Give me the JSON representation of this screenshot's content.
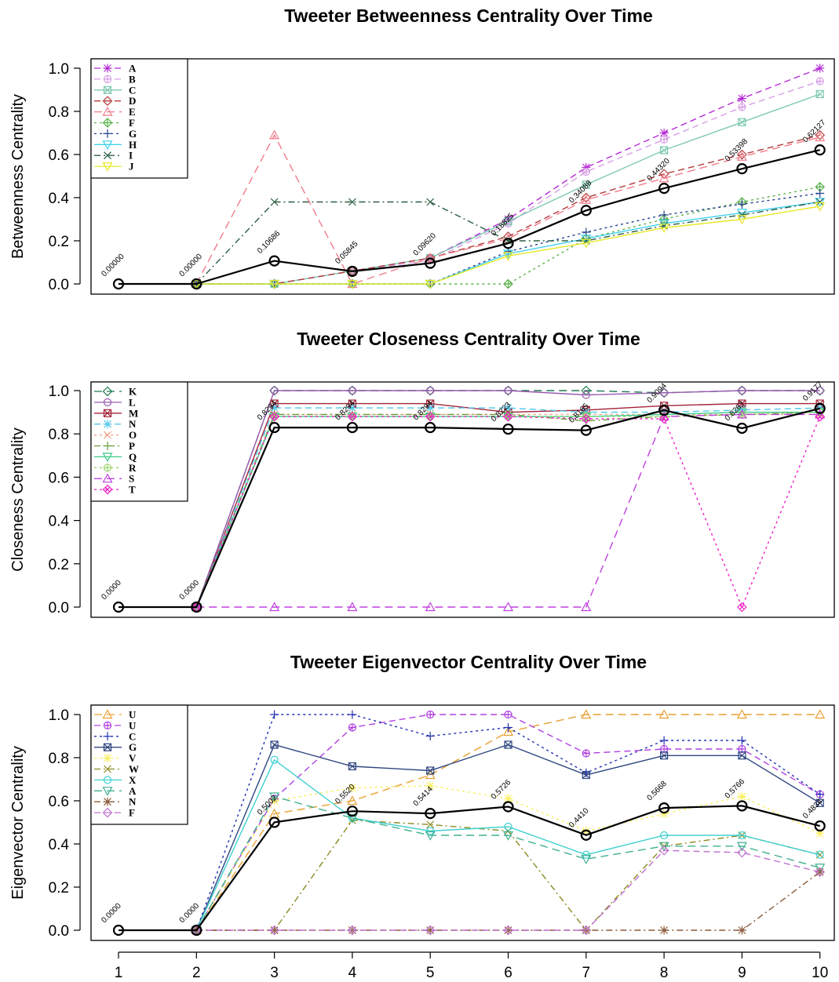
{
  "chart_data": [
    {
      "type": "line",
      "title": "Tweeter Betweenness Centrality Over Time",
      "ylabel": "Betweenness Centrality",
      "xlabel": "",
      "ylim": [
        0,
        1
      ],
      "yticks": [
        "0.0",
        "0.2",
        "0.4",
        "0.6",
        "0.8",
        "1.0"
      ],
      "x": [
        1,
        2,
        3,
        4,
        5,
        6,
        7,
        8,
        9,
        10
      ],
      "legend_position": "top-left",
      "series": [
        {
          "name": "A",
          "color": "#b52ad6",
          "dash": "8,5",
          "marker": "asterisk",
          "values": [
            null,
            0,
            0,
            0.06,
            0.12,
            0.3,
            0.54,
            0.7,
            0.86,
            1.0
          ]
        },
        {
          "name": "B",
          "color": "#d79ee6",
          "dash": "8,5",
          "marker": "circleplus",
          "values": [
            null,
            0,
            0,
            0.06,
            0.11,
            0.28,
            0.52,
            0.67,
            0.82,
            0.94
          ]
        },
        {
          "name": "C",
          "color": "#7fc9b0",
          "dash": "",
          "marker": "squarex",
          "values": [
            null,
            0,
            0,
            0.06,
            0.12,
            0.29,
            0.46,
            0.62,
            0.75,
            0.88
          ]
        },
        {
          "name": "D",
          "color": "#b23a3a",
          "dash": "8,5",
          "marker": "diamond",
          "values": [
            null,
            0,
            0,
            0.06,
            0.12,
            0.22,
            0.4,
            0.51,
            0.6,
            0.69
          ]
        },
        {
          "name": "E",
          "color": "#f07c8a",
          "dash": "10,6",
          "marker": "triangle",
          "values": [
            null,
            0,
            0.69,
            0.0,
            0.12,
            0.21,
            0.39,
            0.49,
            0.59,
            0.68
          ]
        },
        {
          "name": "F",
          "color": "#5ab34a",
          "dash": "3,4",
          "marker": "diamondplus",
          "values": [
            null,
            0,
            0,
            0,
            0,
            0,
            0.21,
            0.3,
            0.38,
            0.45
          ]
        },
        {
          "name": "G",
          "color": "#25428e",
          "dash": "3,4",
          "marker": "plus",
          "values": [
            null,
            0,
            0,
            0,
            0,
            0.15,
            0.24,
            0.32,
            0.37,
            0.42
          ]
        },
        {
          "name": "H",
          "color": "#3fd0f0",
          "dash": "",
          "marker": "triangledown",
          "values": [
            null,
            0,
            0,
            0,
            0,
            0.14,
            0.21,
            0.28,
            0.33,
            0.38
          ]
        },
        {
          "name": "I",
          "color": "#2a5e42",
          "dash": "8,4,2,4",
          "marker": "x",
          "values": [
            null,
            0,
            0.38,
            0.38,
            0.38,
            0.2,
            0.2,
            0.27,
            0.32,
            0.38
          ]
        },
        {
          "name": "J",
          "color": "#e8e828",
          "dash": "",
          "marker": "triangledown",
          "values": [
            null,
            0,
            0,
            0,
            0,
            0.13,
            0.19,
            0.26,
            0.3,
            0.36
          ]
        }
      ],
      "average": {
        "color": "#000000",
        "values": [
          0,
          0,
          0.10686,
          0.05845,
          0.0962,
          0.18825,
          0.34088,
          0.4432,
          0.53398,
          0.62127
        ]
      },
      "annotations": [
        "0.00000",
        "0.00000",
        "0.10686",
        "0.05845",
        "0.09620",
        "0.18825",
        "0.34088",
        "0.44320",
        "0.53398",
        "0.62127"
      ]
    },
    {
      "type": "line",
      "title": "Tweeter Closeness Centrality Over Time",
      "ylabel": "Closeness Centrality",
      "xlabel": "",
      "ylim": [
        0,
        1
      ],
      "yticks": [
        "0.0",
        "0.2",
        "0.4",
        "0.6",
        "0.8",
        "1.0"
      ],
      "x": [
        1,
        2,
        3,
        4,
        5,
        6,
        7,
        8,
        9,
        10
      ],
      "legend_position": "top-left",
      "series": [
        {
          "name": "K",
          "color": "#1f7a4f",
          "dash": "10,6",
          "marker": "diamond",
          "values": [
            null,
            0,
            1.0,
            1.0,
            1.0,
            1.0,
            1.0,
            0.99,
            1.0,
            1.0
          ]
        },
        {
          "name": "L",
          "color": "#9a5ab0",
          "dash": "",
          "marker": "circle",
          "values": [
            null,
            0,
            1.0,
            1.0,
            1.0,
            1.0,
            0.98,
            0.99,
            1.0,
            1.0
          ]
        },
        {
          "name": "M",
          "color": "#a2233a",
          "dash": "",
          "marker": "squarex",
          "values": [
            null,
            0,
            0.94,
            0.94,
            0.94,
            0.9,
            0.91,
            0.93,
            0.94,
            0.94
          ]
        },
        {
          "name": "N",
          "color": "#52c8e8",
          "dash": "8,5",
          "marker": "asterisk",
          "values": [
            null,
            0,
            0.92,
            0.92,
            0.92,
            0.92,
            0.9,
            0.9,
            0.91,
            0.92
          ]
        },
        {
          "name": "O",
          "color": "#f0a080",
          "dash": "3,4",
          "marker": "x",
          "values": [
            null,
            0,
            0.89,
            0.89,
            0.89,
            0.89,
            0.89,
            0.89,
            0.89,
            0.89
          ]
        },
        {
          "name": "P",
          "color": "#6a9e3a",
          "dash": "8,4,2,4",
          "marker": "plus",
          "values": [
            null,
            0,
            0.89,
            0.89,
            0.89,
            0.89,
            0.86,
            0.88,
            0.89,
            0.9
          ]
        },
        {
          "name": "Q",
          "color": "#3acb8a",
          "dash": "",
          "marker": "triangledown",
          "values": [
            null,
            0,
            0.88,
            0.88,
            0.88,
            0.88,
            0.88,
            0.89,
            0.9,
            0.9
          ]
        },
        {
          "name": "R",
          "color": "#9ad46a",
          "dash": "3,4",
          "marker": "circleplus",
          "values": [
            null,
            0,
            0.88,
            0.88,
            0.88,
            0.88,
            0.88,
            0.88,
            0.89,
            0.9
          ]
        },
        {
          "name": "S",
          "color": "#c040e0",
          "dash": "10,6",
          "marker": "triangle",
          "values": [
            null,
            0,
            0.0,
            0.0,
            0.0,
            0.0,
            0.0,
            0.88,
            0.89,
            0.89
          ]
        },
        {
          "name": "T",
          "color": "#f020c8",
          "dash": "3,4",
          "marker": "diamondx",
          "values": [
            null,
            0,
            0.88,
            0.88,
            0.88,
            0.88,
            0.87,
            0.87,
            0.0,
            0.88
          ]
        }
      ],
      "average": {
        "color": "#000000",
        "values": [
          0,
          0,
          0.8294,
          0.8294,
          0.8294,
          0.8223,
          0.8165,
          0.9094,
          0.8262,
          0.9177
        ]
      },
      "annotations": [
        "0.0000",
        "0.0000",
        "0.8294",
        "0.8294",
        "0.8294",
        "0.8223",
        "0.8165",
        "0.9094",
        "0.8262",
        "0.9177"
      ]
    },
    {
      "type": "line",
      "title": "Tweeter Eigenvector Centrality Over Time",
      "ylabel": "Eigenvector Centrality",
      "xlabel": "",
      "ylim": [
        0,
        1
      ],
      "yticks": [
        "0.0",
        "0.2",
        "0.4",
        "0.6",
        "0.8",
        "1.0"
      ],
      "xticks": [
        "1",
        "2",
        "3",
        "4",
        "5",
        "6",
        "7",
        "8",
        "9",
        "10"
      ],
      "x": [
        1,
        2,
        3,
        4,
        5,
        6,
        7,
        8,
        9,
        10
      ],
      "legend_position": "top-left",
      "series": [
        {
          "name": "U",
          "color": "#e8a030",
          "dash": "10,6",
          "marker": "triangle",
          "values": [
            null,
            0,
            0.54,
            0.6,
            0.72,
            0.92,
            1.0,
            1.0,
            1.0,
            1.0
          ]
        },
        {
          "name": "U",
          "color": "#b040e0",
          "dash": "8,5",
          "marker": "circleplus",
          "values": [
            null,
            0,
            0.61,
            0.94,
            1.0,
            1.0,
            0.82,
            0.84,
            0.84,
            0.63
          ]
        },
        {
          "name": "C",
          "color": "#2232b0",
          "dash": "3,4",
          "marker": "plus",
          "values": [
            null,
            0,
            1.0,
            1.0,
            0.9,
            0.94,
            0.73,
            0.88,
            0.88,
            0.63
          ]
        },
        {
          "name": "G",
          "color": "#2f4680",
          "dash": "",
          "marker": "squarex",
          "values": [
            null,
            0,
            0.86,
            0.76,
            0.74,
            0.86,
            0.72,
            0.81,
            0.81,
            0.59
          ]
        },
        {
          "name": "V",
          "color": "#f8f060",
          "dash": "3,4",
          "marker": "asterisk",
          "values": [
            null,
            0,
            0.6,
            0.66,
            0.67,
            0.61,
            0.46,
            0.54,
            0.62,
            0.45
          ]
        },
        {
          "name": "W",
          "color": "#8a8a20",
          "dash": "8,4,2,4",
          "marker": "x",
          "values": [
            null,
            0,
            0.0,
            0.51,
            0.49,
            0.46,
            0.0,
            0.39,
            0.44,
            0.35
          ]
        },
        {
          "name": "X",
          "color": "#40d0d0",
          "dash": "",
          "marker": "circle",
          "values": [
            null,
            0,
            0.79,
            0.52,
            0.46,
            0.48,
            0.35,
            0.44,
            0.44,
            0.35
          ]
        },
        {
          "name": "A",
          "color": "#40b090",
          "dash": "10,6",
          "marker": "triangledown",
          "values": [
            null,
            0,
            0.62,
            0.52,
            0.44,
            0.44,
            0.33,
            0.39,
            0.39,
            0.29
          ]
        },
        {
          "name": "N",
          "color": "#8a5a3a",
          "dash": "8,4,2,4",
          "marker": "asterisk",
          "values": [
            null,
            0,
            0.0,
            0.0,
            0.0,
            0.0,
            0.0,
            0.0,
            0.0,
            0.27
          ]
        },
        {
          "name": "F",
          "color": "#c070d0",
          "dash": "8,5",
          "marker": "diamond",
          "values": [
            null,
            0,
            0.0,
            0.0,
            0.0,
            0.0,
            0.0,
            0.37,
            0.36,
            0.27
          ]
        }
      ],
      "average": {
        "color": "#000000",
        "values": [
          0,
          0,
          0.5002,
          0.552,
          0.5414,
          0.5726,
          0.441,
          0.5668,
          0.5766,
          0.4834
        ]
      },
      "annotations": [
        "0.0000",
        "0.0000",
        "0.5002",
        "0.5520",
        "0.5414",
        "0.5726",
        "0.4410",
        "0.5668",
        "0.5766",
        "0.4834"
      ]
    }
  ]
}
